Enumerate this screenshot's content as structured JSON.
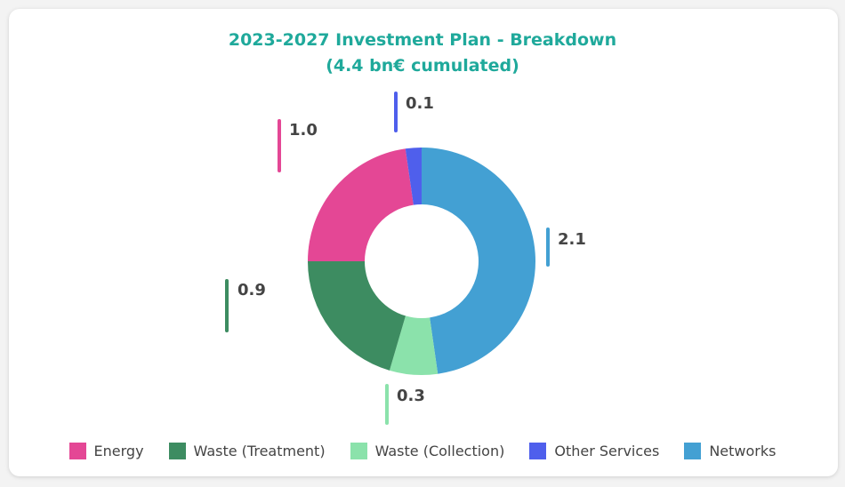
{
  "chart_data": {
    "type": "pie",
    "variant": "donut",
    "title": "2023-2027 Investment Plan - Breakdown",
    "subtitle": "(4.4 bn€ cumulated)",
    "start_angle": "top",
    "direction": "clockwise",
    "slices": [
      {
        "name": "Networks",
        "value": 2.1,
        "label": "2.1",
        "color": "#43a0d3"
      },
      {
        "name": "Waste (Collection)",
        "value": 0.3,
        "label": "0.3",
        "color": "#8be2ab"
      },
      {
        "name": "Waste (Treatment)",
        "value": 0.9,
        "label": "0.9",
        "color": "#3d8c61"
      },
      {
        "name": "Energy",
        "value": 1.0,
        "label": "1.0",
        "color": "#e44795"
      },
      {
        "name": "Other Services",
        "value": 0.1,
        "label": "0.1",
        "color": "#4f5fec"
      }
    ],
    "legend": {
      "placement": "bottom",
      "entries": [
        "Energy",
        "Waste (Treatment)",
        "Waste (Collection)",
        "Other Services",
        "Networks"
      ]
    }
  }
}
